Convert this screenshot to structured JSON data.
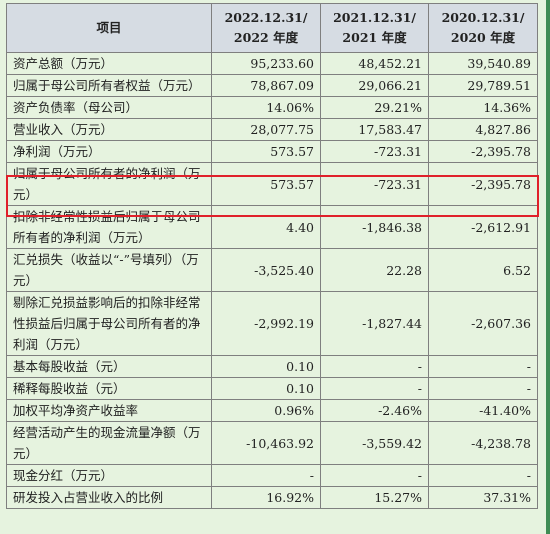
{
  "table": {
    "headers": [
      {
        "line1": "项目",
        "line2": ""
      },
      {
        "line1": "2022.12.31/",
        "line2": "2022 年度"
      },
      {
        "line1": "2021.12.31/",
        "line2": "2021 年度"
      },
      {
        "line1": "2020.12.31/",
        "line2": "2020 年度"
      }
    ],
    "rows": [
      {
        "item": "资产总额（万元）",
        "v2022": "95,233.60",
        "v2021": "48,452.21",
        "v2020": "39,540.89"
      },
      {
        "item": "归属于母公司所有者权益（万元）",
        "v2022": "78,867.09",
        "v2021": "29,066.21",
        "v2020": "29,789.51"
      },
      {
        "item": "资产负债率（母公司）",
        "v2022": "14.06%",
        "v2021": "29.21%",
        "v2020": "14.36%"
      },
      {
        "item": "营业收入（万元）",
        "v2022": "28,077.75",
        "v2021": "17,583.47",
        "v2020": "4,827.86"
      },
      {
        "item": "净利润（万元）",
        "v2022": "573.57",
        "v2021": "-723.31",
        "v2020": "-2,395.78"
      },
      {
        "item": "归属于母公司所有者的净利润（万元）",
        "v2022": "573.57",
        "v2021": "-723.31",
        "v2020": "-2,395.78"
      },
      {
        "item": "扣除非经常性损益后归属于母公司所有者的净利润（万元）",
        "v2022": "4.40",
        "v2021": "-1,846.38",
        "v2020": "-2,612.91"
      },
      {
        "item": "汇兑损失（收益以“-”号填列）（万元）",
        "v2022": "-3,525.40",
        "v2021": "22.28",
        "v2020": "6.52"
      },
      {
        "item": "剔除汇兑损益影响后的扣除非经常性损益后归属于母公司所有者的净利润（万元）",
        "v2022": "-2,992.19",
        "v2021": "-1,827.44",
        "v2020": "-2,607.36"
      },
      {
        "item": "基本每股收益（元）",
        "v2022": "0.10",
        "v2021": "-",
        "v2020": "-"
      },
      {
        "item": "稀释每股收益（元）",
        "v2022": "0.10",
        "v2021": "-",
        "v2020": "-"
      },
      {
        "item": "加权平均净资产收益率",
        "v2022": "0.96%",
        "v2021": "-2.46%",
        "v2020": "-41.40%"
      },
      {
        "item": "经营活动产生的现金流量净额（万元）",
        "v2022": "-10,463.92",
        "v2021": "-3,559.42",
        "v2020": "-4,238.78"
      },
      {
        "item": "现金分红（万元）",
        "v2022": "-",
        "v2021": "-",
        "v2020": "-"
      },
      {
        "item": "研发投入占营业收入的比例",
        "v2022": "16.92%",
        "v2021": "15.27%",
        "v2020": "37.31%"
      }
    ]
  },
  "colors": {
    "background": "#e6f3df",
    "header_fill": "#d6dce3",
    "highlight_border": "#e0202a",
    "side_bar": "#3f8c55"
  }
}
